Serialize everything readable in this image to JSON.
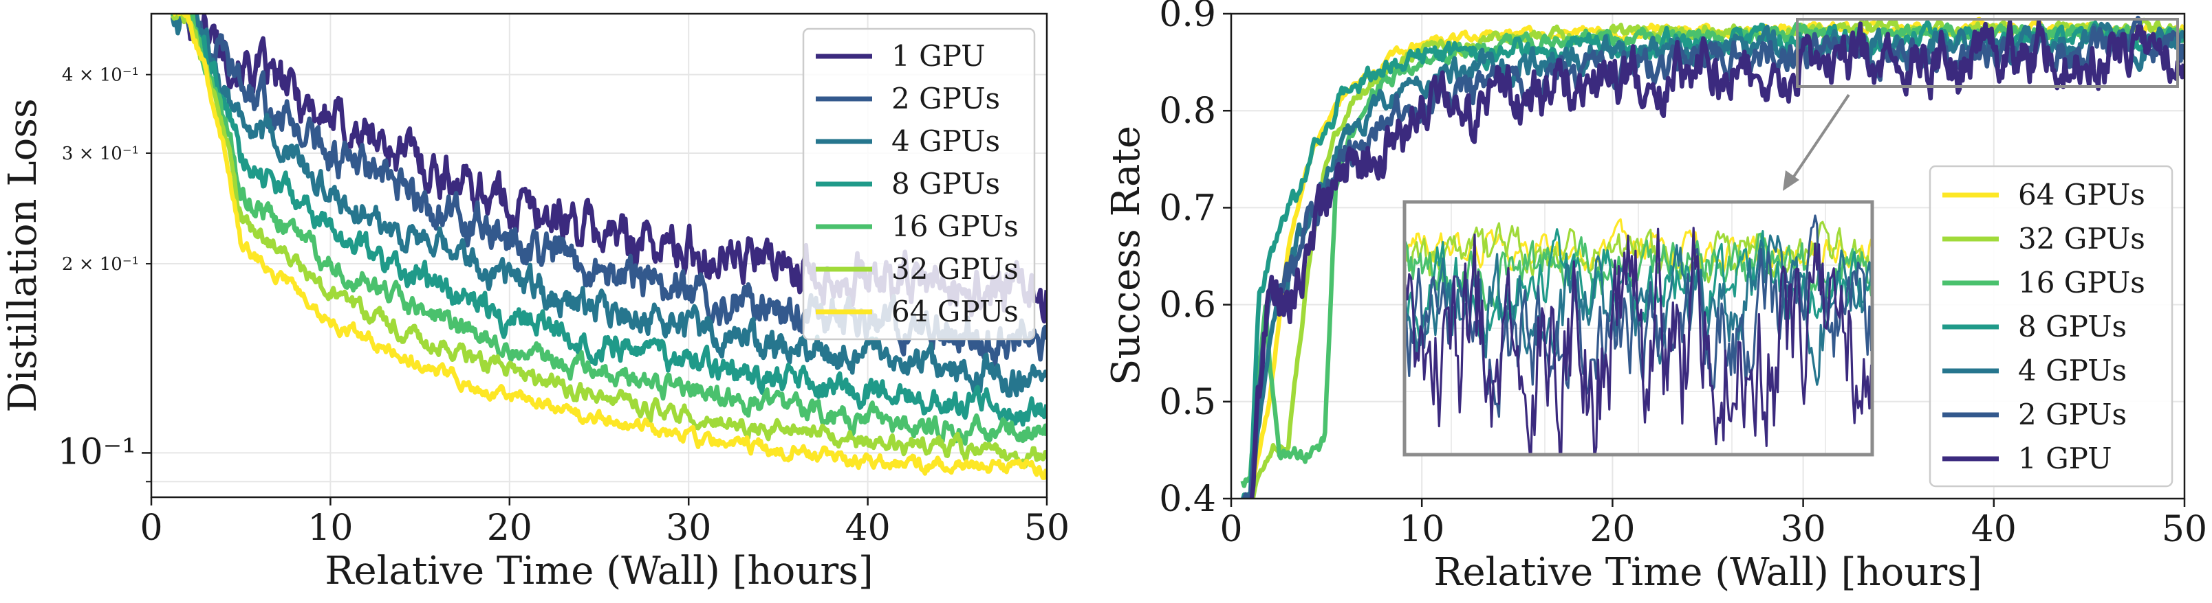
{
  "chart_data": [
    {
      "type": "line",
      "yscale": "log",
      "xlabel": "Relative Time (Wall) [hours]",
      "ylabel": "Distillation Loss",
      "xlim": [
        0,
        50
      ],
      "ylim": [
        0.085,
        0.5
      ],
      "x_ticks": [
        0,
        10,
        20,
        30,
        40,
        50
      ],
      "x_tick_labels": [
        "0",
        "10",
        "20",
        "30",
        "40",
        "50"
      ],
      "y_ticks_major": [
        {
          "value": 0.1,
          "label": "10⁻¹"
        }
      ],
      "y_ticks_minor": [
        {
          "value": 0.2,
          "label": "2 × 10⁻¹"
        },
        {
          "value": 0.3,
          "label": "3 × 10⁻¹"
        },
        {
          "value": 0.4,
          "label": "4 × 10⁻¹"
        }
      ],
      "legend_position": "top-right",
      "grid": true,
      "series": [
        {
          "name": "1 GPU",
          "color": "#3b2a7e",
          "x": [
            2,
            5,
            10,
            15,
            20,
            25,
            30,
            35,
            40,
            45,
            50
          ],
          "values": [
            0.5,
            0.42,
            0.34,
            0.29,
            0.25,
            0.225,
            0.21,
            0.2,
            0.19,
            0.182,
            0.18
          ],
          "noise": 0.06
        },
        {
          "name": "2 GPUs",
          "color": "#33598d",
          "x": [
            2,
            5,
            10,
            15,
            20,
            25,
            30,
            35,
            40,
            45,
            50
          ],
          "values": [
            0.5,
            0.38,
            0.3,
            0.25,
            0.215,
            0.195,
            0.18,
            0.17,
            0.162,
            0.156,
            0.15
          ],
          "noise": 0.05
        },
        {
          "name": "4 GPUs",
          "color": "#26768e",
          "x": [
            2,
            5,
            10,
            15,
            20,
            25,
            30,
            35,
            40,
            45,
            50
          ],
          "values": [
            0.5,
            0.34,
            0.26,
            0.215,
            0.19,
            0.17,
            0.158,
            0.148,
            0.14,
            0.135,
            0.13
          ],
          "noise": 0.042
        },
        {
          "name": "8 GPUs",
          "color": "#1f9a89",
          "x": [
            2,
            5,
            10,
            15,
            20,
            25,
            30,
            35,
            40,
            45,
            50
          ],
          "values": [
            0.5,
            0.3,
            0.225,
            0.19,
            0.165,
            0.15,
            0.138,
            0.13,
            0.124,
            0.12,
            0.117
          ],
          "noise": 0.035
        },
        {
          "name": "16 GPUs",
          "color": "#4ac16d",
          "x": [
            2,
            5,
            10,
            15,
            20,
            25,
            30,
            35,
            40,
            45,
            50
          ],
          "values": [
            0.5,
            0.26,
            0.2,
            0.168,
            0.148,
            0.135,
            0.125,
            0.118,
            0.113,
            0.109,
            0.106
          ],
          "noise": 0.028
        },
        {
          "name": "32 GPUs",
          "color": "#a0da39",
          "x": [
            2,
            5,
            10,
            15,
            20,
            25,
            30,
            35,
            40,
            45,
            50
          ],
          "values": [
            0.5,
            0.235,
            0.178,
            0.152,
            0.135,
            0.123,
            0.115,
            0.109,
            0.104,
            0.101,
            0.099
          ],
          "noise": 0.022
        },
        {
          "name": "64 GPUs",
          "color": "#fde725",
          "x": [
            2,
            5,
            10,
            15,
            20,
            25,
            30,
            35,
            40,
            45,
            50
          ],
          "values": [
            0.5,
            0.215,
            0.162,
            0.138,
            0.123,
            0.113,
            0.106,
            0.101,
            0.097,
            0.095,
            0.094
          ],
          "noise": 0.018
        }
      ]
    },
    {
      "type": "line",
      "yscale": "linear",
      "xlabel": "Relative Time (Wall) [hours]",
      "ylabel": "Success Rate",
      "xlim": [
        0,
        50
      ],
      "ylim": [
        0.4,
        0.9
      ],
      "x_ticks": [
        0,
        10,
        20,
        30,
        40,
        50
      ],
      "x_tick_labels": [
        "0",
        "10",
        "20",
        "30",
        "40",
        "50"
      ],
      "y_ticks": [
        0.4,
        0.5,
        0.6,
        0.7,
        0.8,
        0.9
      ],
      "y_tick_labels": [
        "0.4",
        "0.5",
        "0.6",
        "0.7",
        "0.8",
        "0.9"
      ],
      "legend_position": "center-right",
      "grid": true,
      "inset": {
        "description": "zoomed view of 30–50 hours",
        "xlim": [
          30,
          50
        ],
        "ylim": [
          0.82,
          0.9
        ]
      },
      "series": [
        {
          "name": "64 GPUs",
          "color": "#fde725",
          "x": [
            1,
            2,
            3,
            4,
            5,
            6,
            8,
            10,
            15,
            20,
            30,
            40,
            50
          ],
          "values": [
            0.4,
            0.5,
            0.66,
            0.74,
            0.79,
            0.82,
            0.85,
            0.87,
            0.88,
            0.88,
            0.885,
            0.885,
            0.885
          ],
          "noise": 0.004
        },
        {
          "name": "32 GPUs",
          "color": "#a0da39",
          "x": [
            1,
            2,
            3,
            4,
            5,
            6,
            8,
            10,
            15,
            20,
            30,
            40,
            50
          ],
          "values": [
            0.4,
            0.45,
            0.46,
            0.63,
            0.75,
            0.8,
            0.84,
            0.86,
            0.875,
            0.88,
            0.883,
            0.883,
            0.883
          ],
          "noise": 0.005
        },
        {
          "name": "16 GPUs",
          "color": "#4ac16d",
          "x": [
            1,
            1.8,
            2.5,
            3.5,
            4.5,
            4.9,
            5.5,
            6.5,
            8,
            10,
            15,
            20,
            30,
            40,
            50
          ],
          "values": [
            0.42,
            0.6,
            0.44,
            0.445,
            0.445,
            0.46,
            0.72,
            0.79,
            0.83,
            0.85,
            0.87,
            0.875,
            0.877,
            0.878,
            0.878
          ],
          "noise": 0.006
        },
        {
          "name": "8 GPUs",
          "color": "#1f9a89",
          "x": [
            1,
            1.5,
            2,
            3,
            4,
            5,
            6,
            8,
            10,
            15,
            20,
            30,
            40,
            50
          ],
          "values": [
            0.4,
            0.62,
            0.64,
            0.7,
            0.74,
            0.78,
            0.82,
            0.84,
            0.855,
            0.865,
            0.87,
            0.872,
            0.873,
            0.873
          ],
          "noise": 0.008
        },
        {
          "name": "4 GPUs",
          "color": "#26768e",
          "x": [
            1,
            2,
            3,
            4,
            5,
            6,
            8,
            10,
            15,
            20,
            30,
            40,
            50
          ],
          "values": [
            0.4,
            0.55,
            0.63,
            0.69,
            0.74,
            0.77,
            0.81,
            0.83,
            0.85,
            0.86,
            0.865,
            0.867,
            0.868
          ],
          "noise": 0.01
        },
        {
          "name": "2 GPUs",
          "color": "#33598d",
          "x": [
            1,
            2,
            3,
            4,
            5,
            6,
            8,
            10,
            15,
            20,
            30,
            40,
            50
          ],
          "values": [
            0.4,
            0.6,
            0.62,
            0.68,
            0.72,
            0.75,
            0.79,
            0.81,
            0.83,
            0.845,
            0.855,
            0.86,
            0.862
          ],
          "noise": 0.013
        },
        {
          "name": "1 GPU",
          "color": "#3b2a7e",
          "x": [
            1,
            2,
            3,
            4,
            5,
            6,
            8,
            10,
            15,
            20,
            25,
            30,
            40,
            50
          ],
          "values": [
            0.4,
            0.63,
            0.6,
            0.66,
            0.7,
            0.74,
            0.77,
            0.79,
            0.82,
            0.835,
            0.845,
            0.85,
            0.855,
            0.86
          ],
          "noise": 0.022
        }
      ]
    }
  ]
}
